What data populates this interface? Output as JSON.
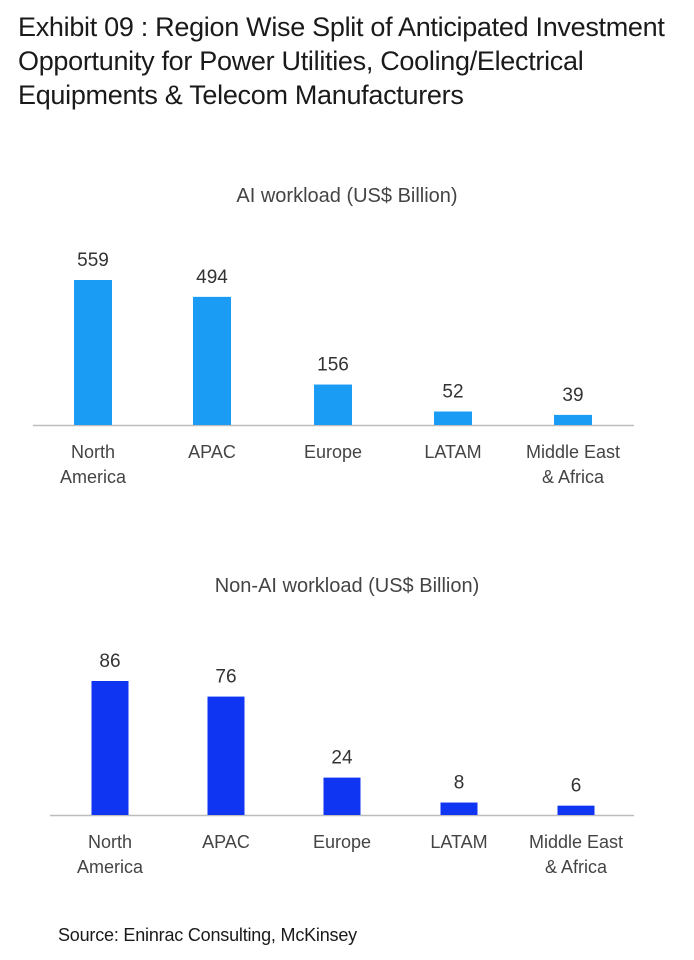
{
  "exhibit": {
    "title": "Exhibit 09 : Region Wise Split of Anticipated Investment Opportunity for Power Utilities, Cooling/Electrical Equipments & Telecom Manufacturers"
  },
  "chart_data": [
    {
      "type": "bar",
      "title": "AI workload (US$ Billion)",
      "categories": [
        "North\nAmerica",
        "APAC",
        "Europe",
        "LATAM",
        "Middle East\n& Africa"
      ],
      "values": [
        559,
        494,
        156,
        52,
        39
      ],
      "color": "#1a9cf5",
      "ylim": [
        0,
        559
      ],
      "grid": false,
      "legend": "none"
    },
    {
      "type": "bar",
      "title": "Non-AI workload (US$ Billion)",
      "categories": [
        "North\nAmerica",
        "APAC",
        "Europe",
        "LATAM",
        "Middle East\n& Africa"
      ],
      "values": [
        86,
        76,
        24,
        8,
        6
      ],
      "color": "#1035f2",
      "ylim": [
        0,
        86
      ],
      "grid": false,
      "legend": "none"
    }
  ],
  "source": "Source: Eninrac Consulting, McKinsey"
}
